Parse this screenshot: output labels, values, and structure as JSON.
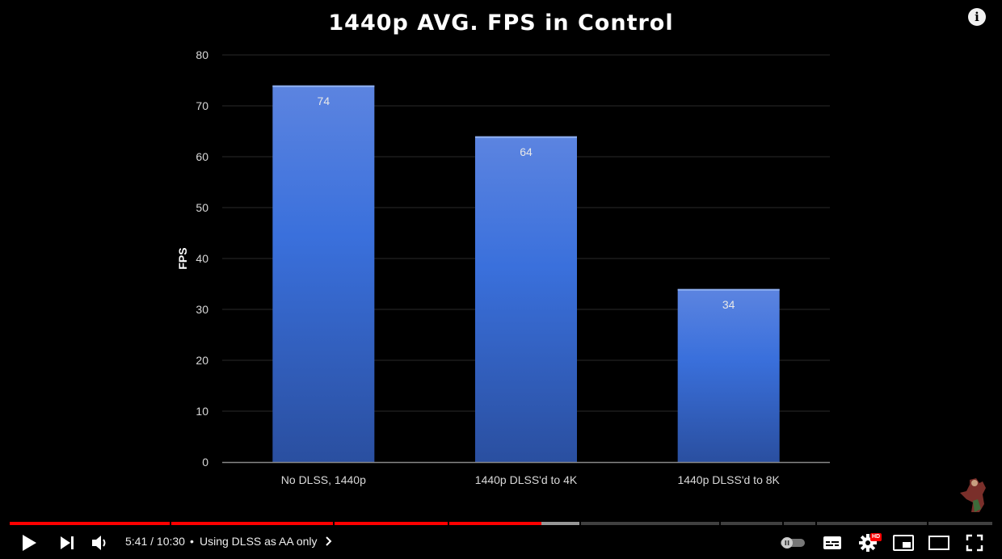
{
  "player": {
    "current_time": "5:41",
    "duration": "10:30",
    "separator": " / ",
    "chapter_title": "Using DLSS as AA only",
    "info_label": "i",
    "hd_badge": "HD",
    "progress_fraction": 0.541,
    "buffered_fraction": 0.58,
    "chapter_boundaries": [
      0.163,
      0.329,
      0.446,
      0.58,
      0.722,
      0.786,
      0.82,
      0.933
    ]
  },
  "chart_data": {
    "type": "bar",
    "title": "1440p AVG. FPS in Control",
    "xlabel": "",
    "ylabel": "FPS",
    "categories": [
      "No DLSS, 1440p",
      "1440p DLSS'd to 4K",
      "1440p DLSS'd to 8K"
    ],
    "values": [
      74,
      64,
      34
    ],
    "ylim": [
      0,
      80
    ],
    "yticks": [
      0,
      10,
      20,
      30,
      40,
      50,
      60,
      70,
      80
    ],
    "grid": true,
    "bar_color": "#4a7fe0"
  },
  "colors": {
    "background": "#000000",
    "bar_top": "#5c84e0",
    "bar_mid": "#3a6ed8",
    "bar_bottom": "#2a52a8",
    "progress_played": "#ff0000",
    "text": "#d9d9d9"
  }
}
